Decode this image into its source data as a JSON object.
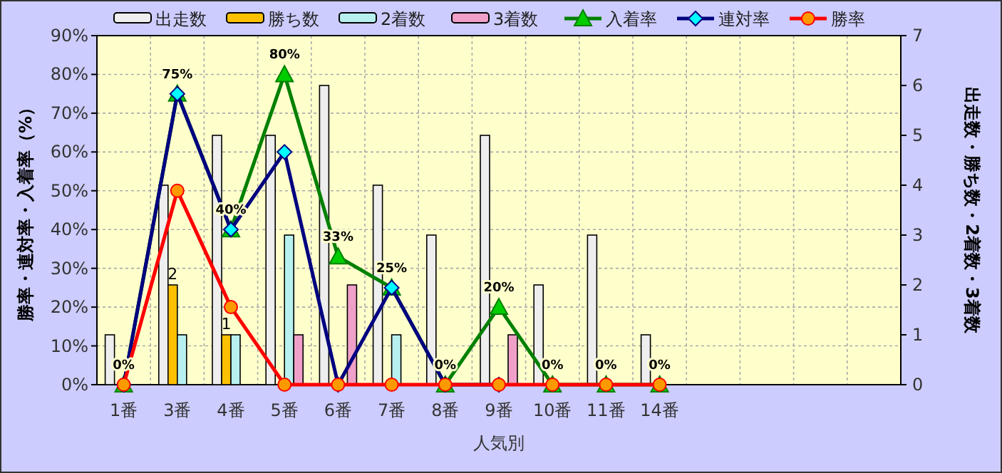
{
  "chart_data": {
    "type": "bar",
    "categories": [
      "1番",
      "3番",
      "4番",
      "5番",
      "6番",
      "7番",
      "8番",
      "9番",
      "10番",
      "11番",
      "14番",
      null,
      null,
      null,
      null
    ],
    "xlabel": "人気別",
    "ylabel": "勝率・連対率・入着率（%）",
    "y2label": "出走数・勝ち数・2着数・3着数",
    "ylim": [
      0,
      90
    ],
    "yticks": [
      {
        "value": 0,
        "label": "0%"
      },
      {
        "value": 10,
        "label": "10%"
      },
      {
        "value": 20,
        "label": "20%"
      },
      {
        "value": 30,
        "label": "30%"
      },
      {
        "value": 40,
        "label": "40%"
      },
      {
        "value": 50,
        "label": "50%"
      },
      {
        "value": 60,
        "label": "60%"
      },
      {
        "value": 70,
        "label": "70%"
      },
      {
        "value": 80,
        "label": "80%"
      },
      {
        "value": 90,
        "label": "90%"
      }
    ],
    "y2lim": [
      0,
      7
    ],
    "y2ticks": [
      0,
      1,
      2,
      3,
      4,
      5,
      6,
      7
    ],
    "grid": true,
    "legend": "top",
    "series": [
      {
        "name": "出走数",
        "axis": "y2",
        "color": "#eeeeee",
        "values": [
          1,
          4,
          5,
          5,
          6,
          4,
          3,
          5,
          2,
          3,
          1,
          null,
          null,
          null,
          null
        ]
      },
      {
        "name": "勝ち数",
        "axis": "y2",
        "color": "#ffc000",
        "values": [
          0,
          2,
          1,
          0,
          0,
          0,
          0,
          0,
          0,
          0,
          0,
          null,
          null,
          null,
          null
        ],
        "value_labels": [
          null,
          "2",
          "1",
          null,
          null,
          null,
          null,
          null,
          null,
          null,
          null,
          null,
          null,
          null,
          null
        ]
      },
      {
        "name": "2着数",
        "axis": "y2",
        "color": "#b8f0f0",
        "values": [
          0,
          1,
          1,
          3,
          0,
          1,
          0,
          0,
          0,
          0,
          0,
          null,
          null,
          null,
          null
        ]
      },
      {
        "name": "3着数",
        "axis": "y2",
        "color": "#f0a0c8",
        "values": [
          0,
          0,
          0,
          1,
          2,
          0,
          0,
          1,
          0,
          0,
          0,
          null,
          null,
          null,
          null
        ]
      },
      {
        "name": "入着率",
        "type": "line",
        "color": "#008000",
        "marker": "triangle",
        "values": [
          0,
          75,
          40,
          80,
          33,
          25,
          0,
          20,
          0,
          0,
          0,
          null,
          null,
          null,
          null
        ],
        "value_labels": [
          "0%",
          "75%",
          "40%",
          "80%",
          "33%",
          "25%",
          "0%",
          "20%",
          "0%",
          "0%",
          "0%",
          null,
          null,
          null,
          null
        ]
      },
      {
        "name": "連対率",
        "type": "line",
        "color": "#000080",
        "marker": "diamond",
        "values": [
          0,
          75,
          40,
          60,
          0,
          25,
          0,
          0,
          null,
          null,
          null,
          null,
          null,
          null,
          null
        ]
      },
      {
        "name": "勝率",
        "type": "line",
        "color": "#ff0000",
        "marker": "circle",
        "values": [
          0,
          50,
          20,
          0,
          0,
          0,
          0,
          0,
          0,
          0,
          0,
          null,
          null,
          null,
          null
        ]
      }
    ]
  }
}
